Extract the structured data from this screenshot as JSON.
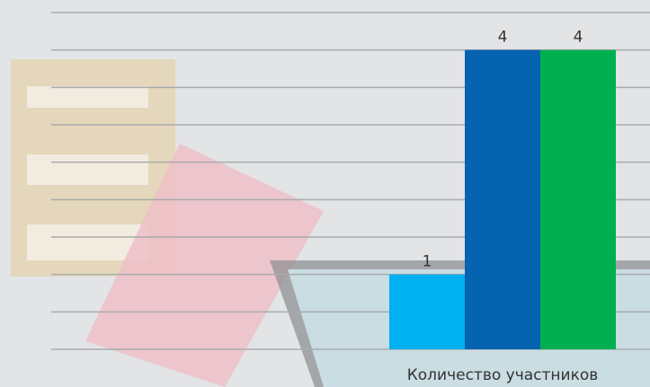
{
  "chart_data": {
    "type": "bar",
    "categories": [
      "Количество участников"
    ],
    "series": [
      {
        "color": "#00b0f0",
        "values": [
          1
        ],
        "value_labels": [
          "1"
        ]
      },
      {
        "color": "#0563b0",
        "values": [
          4
        ],
        "value_labels": [
          "4"
        ]
      },
      {
        "color": "#00b050",
        "values": [
          4
        ],
        "value_labels": [
          "4"
        ]
      }
    ],
    "ylim": [
      0,
      4.5
    ],
    "yticks": [
      0,
      0.5,
      1,
      1.5,
      2,
      2.5,
      3,
      3.5,
      4,
      4.5
    ],
    "grid": true
  }
}
